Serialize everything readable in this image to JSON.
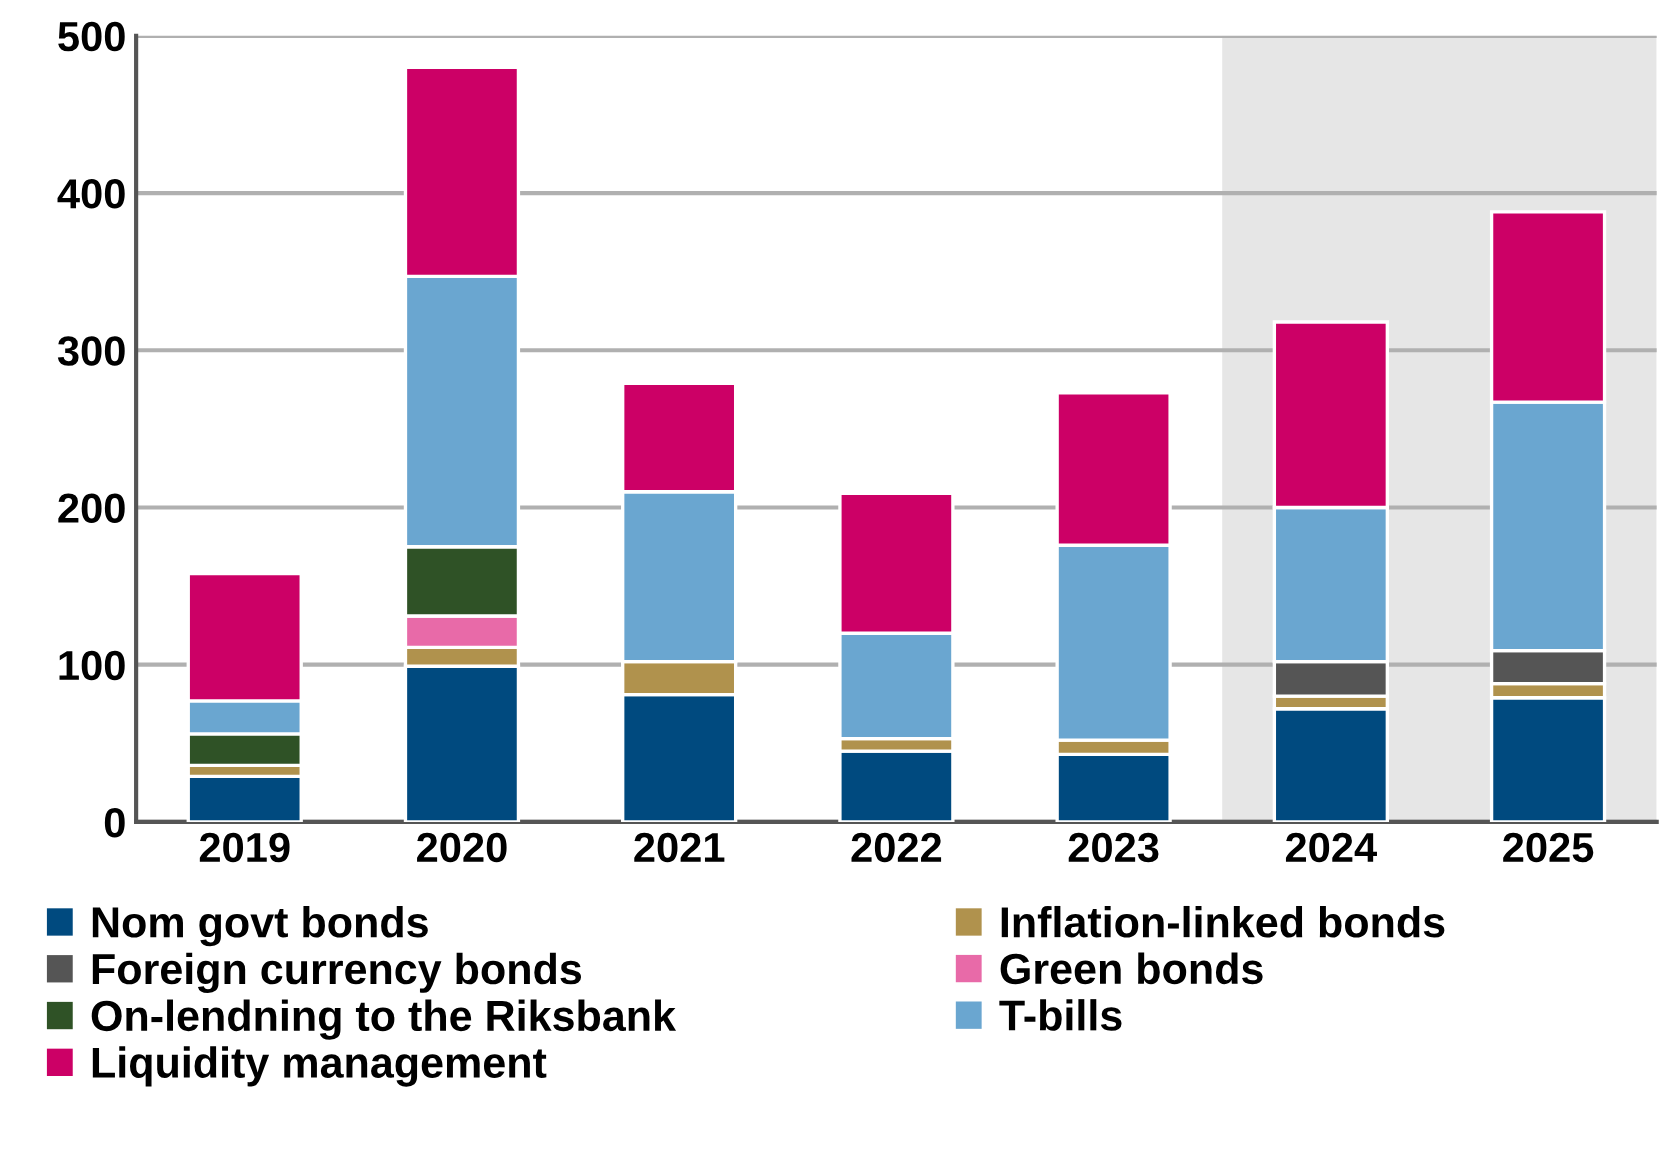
{
  "chart_data": {
    "type": "bar",
    "stacked": true,
    "categories": [
      "2019",
      "2020",
      "2021",
      "2022",
      "2023",
      "2024",
      "2025"
    ],
    "series": [
      {
        "name": "Nom govt bonds",
        "color": "#004a7f",
        "values": [
          29,
          99,
          81,
          45,
          43,
          72,
          79
        ]
      },
      {
        "name": "Inflation-linked bonds",
        "color": "#b0924d",
        "values": [
          7,
          12,
          21,
          8,
          9,
          8,
          9
        ]
      },
      {
        "name": "Foreign currency bonds",
        "color": "#555555",
        "values": [
          null,
          null,
          null,
          null,
          null,
          22,
          21
        ]
      },
      {
        "name": "Green bonds",
        "color": "#e86aa8",
        "values": [
          null,
          20,
          null,
          null,
          null,
          null,
          null
        ]
      },
      {
        "name": "On-lendning to the Riksbank",
        "color": "#2f5226",
        "values": [
          20,
          44,
          null,
          null,
          null,
          null,
          null
        ]
      },
      {
        "name": "T-bills",
        "color": "#6aa6d0",
        "values": [
          21,
          172,
          108,
          67,
          124,
          98,
          158
        ]
      },
      {
        "name": "Liquidity management",
        "color": "#cc0066",
        "values": [
          81,
          133,
          69,
          89,
          97,
          118,
          121
        ]
      }
    ],
    "ylim": [
      0,
      500
    ],
    "yticks": [
      0,
      100,
      200,
      300,
      400,
      500
    ],
    "grid": "y",
    "legend": "bottom",
    "bands": [
      {
        "axis": "x",
        "from": "2024",
        "to": "2025",
        "color": "#e6e6e6"
      }
    ]
  }
}
